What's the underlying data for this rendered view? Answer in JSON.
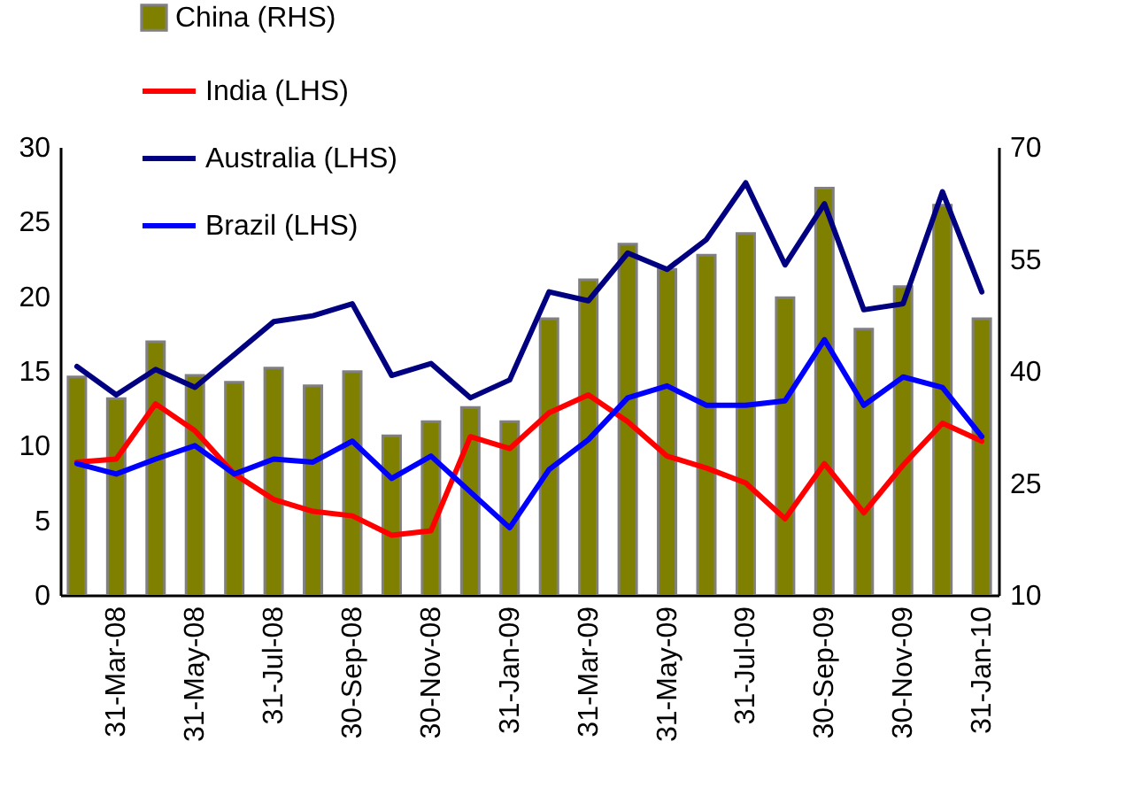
{
  "chart_data": {
    "type": "bar",
    "categories": [
      null,
      "31-Mar-08",
      null,
      "31-May-08",
      null,
      "31-Jul-08",
      null,
      "30-Sep-08",
      null,
      "30-Nov-08",
      null,
      "31-Jan-09",
      null,
      "31-Mar-09",
      null,
      "31-May-09",
      null,
      "31-Jul-09",
      null,
      "30-Sep-09",
      null,
      "30-Nov-09",
      null,
      "31-Jan-10"
    ],
    "series": [
      {
        "name": "China (RHS)",
        "axis": "y2",
        "color": "#808000",
        "values": [
          39.2,
          36.3,
          43.9,
          39.4,
          38.5,
          40.4,
          38.0,
          39.9,
          31.3,
          33.2,
          35.1,
          33.2,
          47.0,
          52.2,
          57.0,
          53.6,
          55.5,
          58.4,
          49.8,
          64.5,
          45.6,
          51.3,
          62.2,
          47.0
        ]
      },
      {
        "name": "India (LHS)",
        "type": "line",
        "axis": "y",
        "color": "#ff0000",
        "values": [
          8.9,
          9.1,
          12.8,
          11.0,
          8.1,
          6.4,
          5.6,
          5.3,
          4.0,
          4.3,
          10.6,
          9.8,
          12.2,
          13.4,
          11.6,
          9.3,
          8.5,
          7.5,
          5.1,
          8.8,
          5.5,
          8.7,
          11.5,
          10.3
        ]
      },
      {
        "name": "Australia (LHS)",
        "type": "line",
        "axis": "y",
        "color": "#000080",
        "values": [
          15.3,
          13.4,
          15.1,
          13.9,
          16.1,
          18.3,
          18.7,
          19.5,
          14.7,
          15.5,
          13.2,
          14.4,
          20.3,
          19.7,
          22.9,
          21.8,
          23.8,
          27.6,
          22.1,
          26.2,
          19.1,
          19.5,
          27.0,
          20.3
        ]
      },
      {
        "name": "Brazil (LHS)",
        "type": "line",
        "axis": "y",
        "color": "#0000ff",
        "values": [
          8.8,
          8.1,
          9.1,
          10.0,
          8.1,
          9.1,
          8.9,
          10.3,
          7.8,
          9.3,
          6.9,
          4.5,
          8.4,
          10.4,
          13.2,
          14.0,
          12.7,
          12.7,
          13.0,
          17.1,
          12.7,
          14.6,
          13.9,
          10.6
        ]
      }
    ],
    "ylim": [
      0,
      30
    ],
    "yticks": [
      0,
      5,
      10,
      15,
      20,
      25,
      30
    ],
    "y2lim": [
      10,
      70
    ],
    "y2ticks": [
      10,
      25,
      40,
      55,
      70
    ],
    "legend": "top left",
    "grid": false
  }
}
